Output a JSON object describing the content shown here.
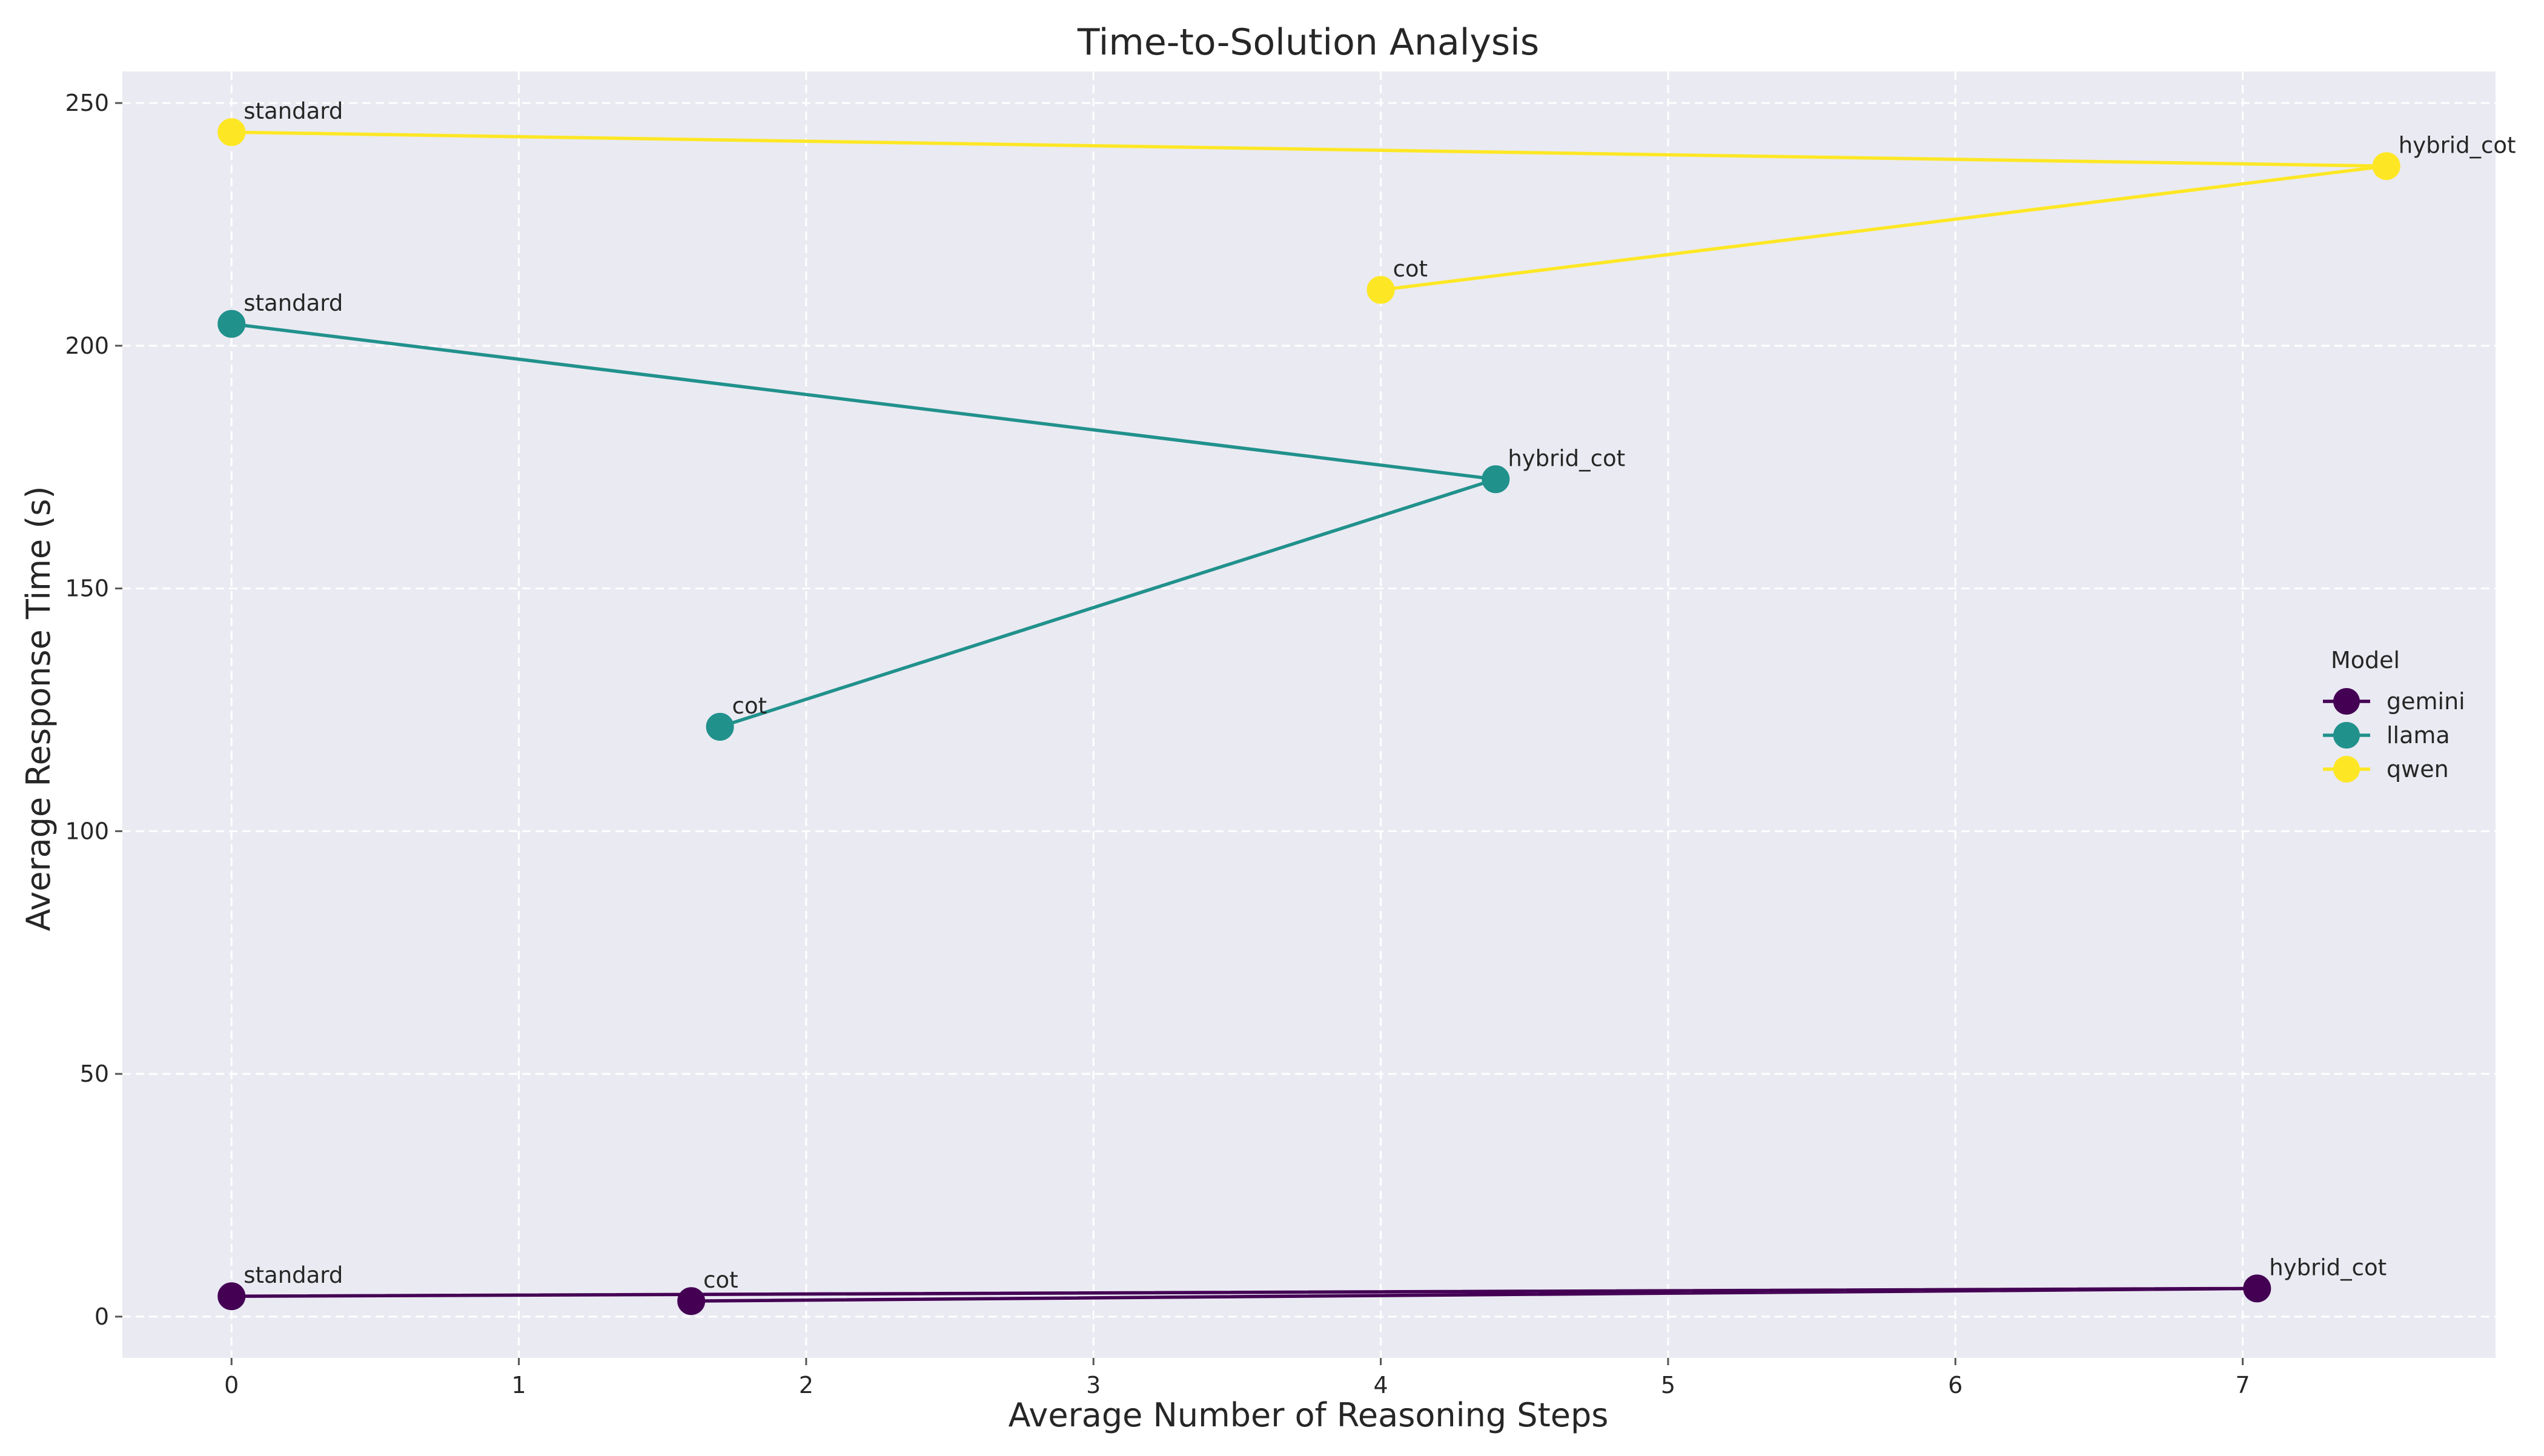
{
  "chart_data": {
    "type": "line",
    "title": "Time-to-Solution Analysis",
    "xlabel": "Average Number of Reasoning Steps",
    "ylabel": "Average Response Time (s)",
    "xlim": [
      -0.38,
      7.88
    ],
    "ylim": [
      -8.5,
      256.5
    ],
    "xticks": [
      0,
      1,
      2,
      3,
      4,
      5,
      6,
      7
    ],
    "yticks": [
      0,
      50,
      100,
      150,
      200,
      250
    ],
    "grid": true,
    "legend": {
      "title": "Model",
      "placement": "center-right"
    },
    "series": [
      {
        "name": "gemini",
        "color": "#440154",
        "points": [
          {
            "label": "standard",
            "x": 0.0,
            "y": 4.2
          },
          {
            "label": "hybrid_cot",
            "x": 7.05,
            "y": 5.8
          },
          {
            "label": "cot",
            "x": 1.6,
            "y": 3.2
          }
        ]
      },
      {
        "name": "llama",
        "color": "#21918c",
        "points": [
          {
            "label": "standard",
            "x": 0.0,
            "y": 204.5
          },
          {
            "label": "hybrid_cot",
            "x": 4.4,
            "y": 172.5
          },
          {
            "label": "cot",
            "x": 1.7,
            "y": 121.5
          }
        ]
      },
      {
        "name": "qwen",
        "color": "#fde725",
        "points": [
          {
            "label": "standard",
            "x": 0.0,
            "y": 244.0
          },
          {
            "label": "hybrid_cot",
            "x": 7.5,
            "y": 237.0
          },
          {
            "label": "cot",
            "x": 4.0,
            "y": 211.5
          }
        ]
      }
    ]
  }
}
